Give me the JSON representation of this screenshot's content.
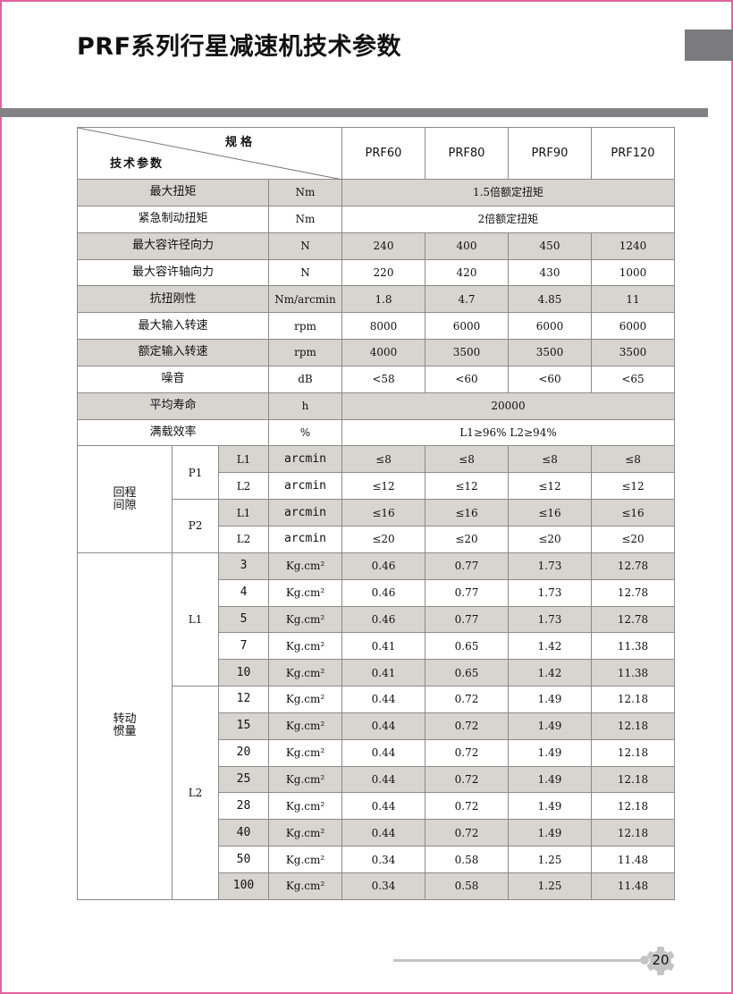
{
  "page": {
    "title": "PRF系列行星减速机技术参数",
    "page_number": "20",
    "colors": {
      "border": "#e0649e",
      "bar": "#828284",
      "shade": "#d8d5d1"
    }
  },
  "table": {
    "header": {
      "spec_label": "规格",
      "param_label": "技术参数",
      "models": [
        "PRF60",
        "PRF80",
        "PRF90",
        "PRF120"
      ]
    },
    "params": [
      {
        "name": "最大扭矩",
        "unit": "Nm",
        "merged": "1.5倍额定扭矩",
        "shaded": true
      },
      {
        "name": "紧急制动扭矩",
        "unit": "Nm",
        "merged": "2倍额定扭矩",
        "shaded": false
      },
      {
        "name": "最大容许径向力",
        "unit": "N",
        "values": [
          "240",
          "400",
          "450",
          "1240"
        ],
        "shaded": true
      },
      {
        "name": "最大容许轴向力",
        "unit": "N",
        "values": [
          "220",
          "420",
          "430",
          "1000"
        ],
        "shaded": false
      },
      {
        "name": "抗扭刚性",
        "unit": "Nm/arcmin",
        "values": [
          "1.8",
          "4.7",
          "4.85",
          "11"
        ],
        "shaded": true
      },
      {
        "name": "最大输入转速",
        "unit": "rpm",
        "values": [
          "8000",
          "6000",
          "6000",
          "6000"
        ],
        "shaded": false
      },
      {
        "name": "额定输入转速",
        "unit": "rpm",
        "values": [
          "4000",
          "3500",
          "3500",
          "3500"
        ],
        "shaded": true
      },
      {
        "name": "噪音",
        "unit": "dB",
        "values": [
          "<58",
          "<60",
          "<60",
          "<65"
        ],
        "shaded": false
      },
      {
        "name": "平均寿命",
        "unit": "h",
        "merged": "20000",
        "shaded": true
      },
      {
        "name": "满载效率",
        "unit": "%",
        "merged": "L1≥96%   L2≥94%",
        "shaded": false
      }
    ],
    "backlash": {
      "label": "回程\n间隙",
      "groups": [
        {
          "stage": "P1",
          "rows": [
            {
              "level": "L1",
              "unit": "arcmin",
              "values": [
                "≤8",
                "≤8",
                "≤8",
                "≤8"
              ],
              "shaded": true
            },
            {
              "level": "L2",
              "unit": "arcmin",
              "values": [
                "≤12",
                "≤12",
                "≤12",
                "≤12"
              ],
              "shaded": false
            }
          ]
        },
        {
          "stage": "P2",
          "rows": [
            {
              "level": "L1",
              "unit": "arcmin",
              "values": [
                "≤16",
                "≤16",
                "≤16",
                "≤16"
              ],
              "shaded": true
            },
            {
              "level": "L2",
              "unit": "arcmin",
              "values": [
                "≤20",
                "≤20",
                "≤20",
                "≤20"
              ],
              "shaded": false
            }
          ]
        }
      ]
    },
    "inertia": {
      "label": "转动\n惯量",
      "unit": "Kg.cm²",
      "groups": [
        {
          "stage": "L1",
          "rows": [
            {
              "ratio": "3",
              "values": [
                "0.46",
                "0.77",
                "1.73",
                "12.78"
              ],
              "shaded": true
            },
            {
              "ratio": "4",
              "values": [
                "0.46",
                "0.77",
                "1.73",
                "12.78"
              ],
              "shaded": false
            },
            {
              "ratio": "5",
              "values": [
                "0.46",
                "0.77",
                "1.73",
                "12.78"
              ],
              "shaded": true
            },
            {
              "ratio": "7",
              "values": [
                "0.41",
                "0.65",
                "1.42",
                "11.38"
              ],
              "shaded": false
            },
            {
              "ratio": "10",
              "values": [
                "0.41",
                "0.65",
                "1.42",
                "11.38"
              ],
              "shaded": true
            }
          ]
        },
        {
          "stage": "L2",
          "rows": [
            {
              "ratio": "12",
              "values": [
                "0.44",
                "0.72",
                "1.49",
                "12.18"
              ],
              "shaded": false
            },
            {
              "ratio": "15",
              "values": [
                "0.44",
                "0.72",
                "1.49",
                "12.18"
              ],
              "shaded": true
            },
            {
              "ratio": "20",
              "values": [
                "0.44",
                "0.72",
                "1.49",
                "12.18"
              ],
              "shaded": false
            },
            {
              "ratio": "25",
              "values": [
                "0.44",
                "0.72",
                "1.49",
                "12.18"
              ],
              "shaded": true
            },
            {
              "ratio": "28",
              "values": [
                "0.44",
                "0.72",
                "1.49",
                "12.18"
              ],
              "shaded": false
            },
            {
              "ratio": "40",
              "values": [
                "0.44",
                "0.72",
                "1.49",
                "12.18"
              ],
              "shaded": true
            },
            {
              "ratio": "50",
              "values": [
                "0.34",
                "0.58",
                "1.25",
                "11.48"
              ],
              "shaded": false
            },
            {
              "ratio": "100",
              "values": [
                "0.34",
                "0.58",
                "1.25",
                "11.48"
              ],
              "shaded": true
            }
          ]
        }
      ]
    }
  }
}
